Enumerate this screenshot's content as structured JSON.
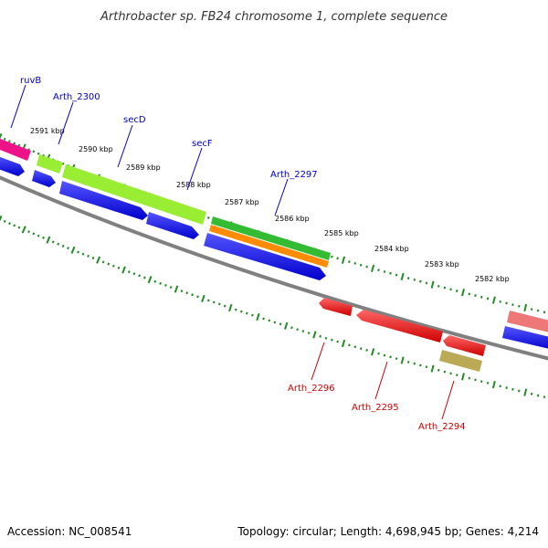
{
  "title": "Arthrobacter sp. FB24 chromosome 1, complete sequence",
  "footer": {
    "accession": "Accession: NC_008541",
    "topology": "Topology: circular; Length: 4,698,945 bp; Genes: 4,214"
  },
  "kbp_labels": [
    "2591 kbp",
    "2590 kbp",
    "2589 kbp",
    "2588 kbp",
    "2587 kbp",
    "2586 kbp",
    "2585 kbp",
    "2584 kbp",
    "2583 kbp",
    "2582 kbp"
  ],
  "gene_labels_forward": [
    "ruvB",
    "Arth_2300",
    "secD",
    "secF",
    "Arth_2297"
  ],
  "gene_labels_reverse": [
    "Arth_2296",
    "Arth_2295",
    "Arth_2294"
  ],
  "colors": {
    "backbone": "#808080",
    "tick": "#228b22",
    "cds_blue": "#0000ee",
    "cds_red": "#ee0000",
    "pink": "#ee1289",
    "yellow_green": "#99ee33",
    "green": "#33bb33",
    "orange": "#ff8c00",
    "salmon": "#ee7777",
    "khaki": "#bbaa55",
    "forward_label": "#0000cc",
    "reverse_label": "#cc0000"
  }
}
